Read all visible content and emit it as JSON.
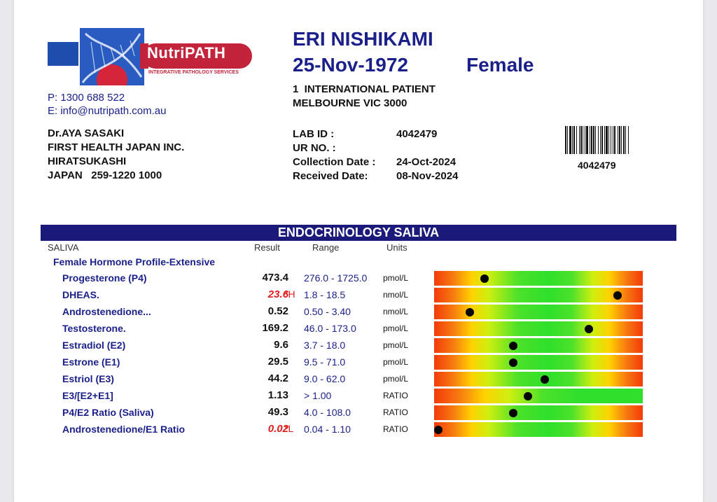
{
  "lab": {
    "logo_name": "NutriPATH",
    "logo_tagline": "Integrative Pathology Services",
    "phone": "P: 1300 688 522",
    "email": "E: info@nutripath.com.au"
  },
  "doctor": {
    "name": "Dr.AYA SASAKI",
    "company": "FIRST HEALTH JAPAN INC.",
    "city": "HIRATSUKASHI",
    "country_line": "JAPAN   259-1220 1000"
  },
  "patient": {
    "name": "ERI NISHIKAMI",
    "dob": "25-Nov-1972",
    "sex": "Female",
    "address1": "1  INTERNATIONAL PATIENT",
    "address2": "MELBOURNE VIC 3000"
  },
  "lab_info": {
    "lab_id_label": "LAB ID :",
    "lab_id": "4042479",
    "ur_label": "UR NO. :",
    "ur_value": "",
    "collection_label": "Collection Date :",
    "collection_date": "24-Oct-2024",
    "received_label": "Received Date:",
    "received_date": "08-Nov-2024",
    "barcode_number": "4042479"
  },
  "section_title": "ENDOCRINOLOGY SALIVA",
  "columns": {
    "sample": "SALIVA",
    "result": "Result",
    "range": "Range",
    "units": "Units"
  },
  "profile_title": "Female Hormone Profile-Extensive",
  "colors": {
    "navy": "#1b1a7a",
    "abnormal": "#e01b1b",
    "dot": "#050505"
  },
  "tests": [
    {
      "name": "Progesterone (P4)",
      "result": "473.4",
      "flag": "",
      "range": "276.0 - 1725.0",
      "units": "pmol/L",
      "bar_type": "range",
      "marker_position": 0.24
    },
    {
      "name": "DHEAS.",
      "result": "23.6",
      "flag": "*H",
      "range": "1.8 - 18.5",
      "units": "nmol/L",
      "bar_type": "range",
      "marker_position": 0.88
    },
    {
      "name": "Androstenedione...",
      "result": "0.52",
      "flag": "",
      "range": "0.50 - 3.40",
      "units": "nmol/L",
      "bar_type": "range",
      "marker_position": 0.17
    },
    {
      "name": "Testosterone.",
      "result": "169.2",
      "flag": "",
      "range": "46.0 - 173.0",
      "units": "pmol/L",
      "bar_type": "range",
      "marker_position": 0.74
    },
    {
      "name": "Estradiol (E2)",
      "result": "9.6",
      "flag": "",
      "range": "3.7 - 18.0",
      "units": "pmol/L",
      "bar_type": "range",
      "marker_position": 0.38
    },
    {
      "name": "Estrone (E1)",
      "result": "29.5",
      "flag": "",
      "range": "9.5 - 71.0",
      "units": "pmol/L",
      "bar_type": "range",
      "marker_position": 0.38
    },
    {
      "name": "Estriol (E3)",
      "result": "44.2",
      "flag": "",
      "range": "9.0 - 62.0",
      "units": "pmol/L",
      "bar_type": "range",
      "marker_position": 0.53
    },
    {
      "name": "E3/[E2+E1]",
      "result": "1.13",
      "flag": "",
      "range": "> 1.00",
      "units": "RATIO",
      "bar_type": "ratio",
      "marker_position": 0.45
    },
    {
      "name": "P4/E2 Ratio (Saliva)",
      "result": "49.3",
      "flag": "",
      "range": "4.0 - 108.0",
      "units": "RATIO",
      "bar_type": "range",
      "marker_position": 0.38
    },
    {
      "name": "Androstenedione/E1 Ratio",
      "result": "0.02",
      "flag": "*L",
      "range": "0.04 - 1.10",
      "units": "RATIO",
      "bar_type": "range",
      "marker_position": 0.02
    }
  ]
}
